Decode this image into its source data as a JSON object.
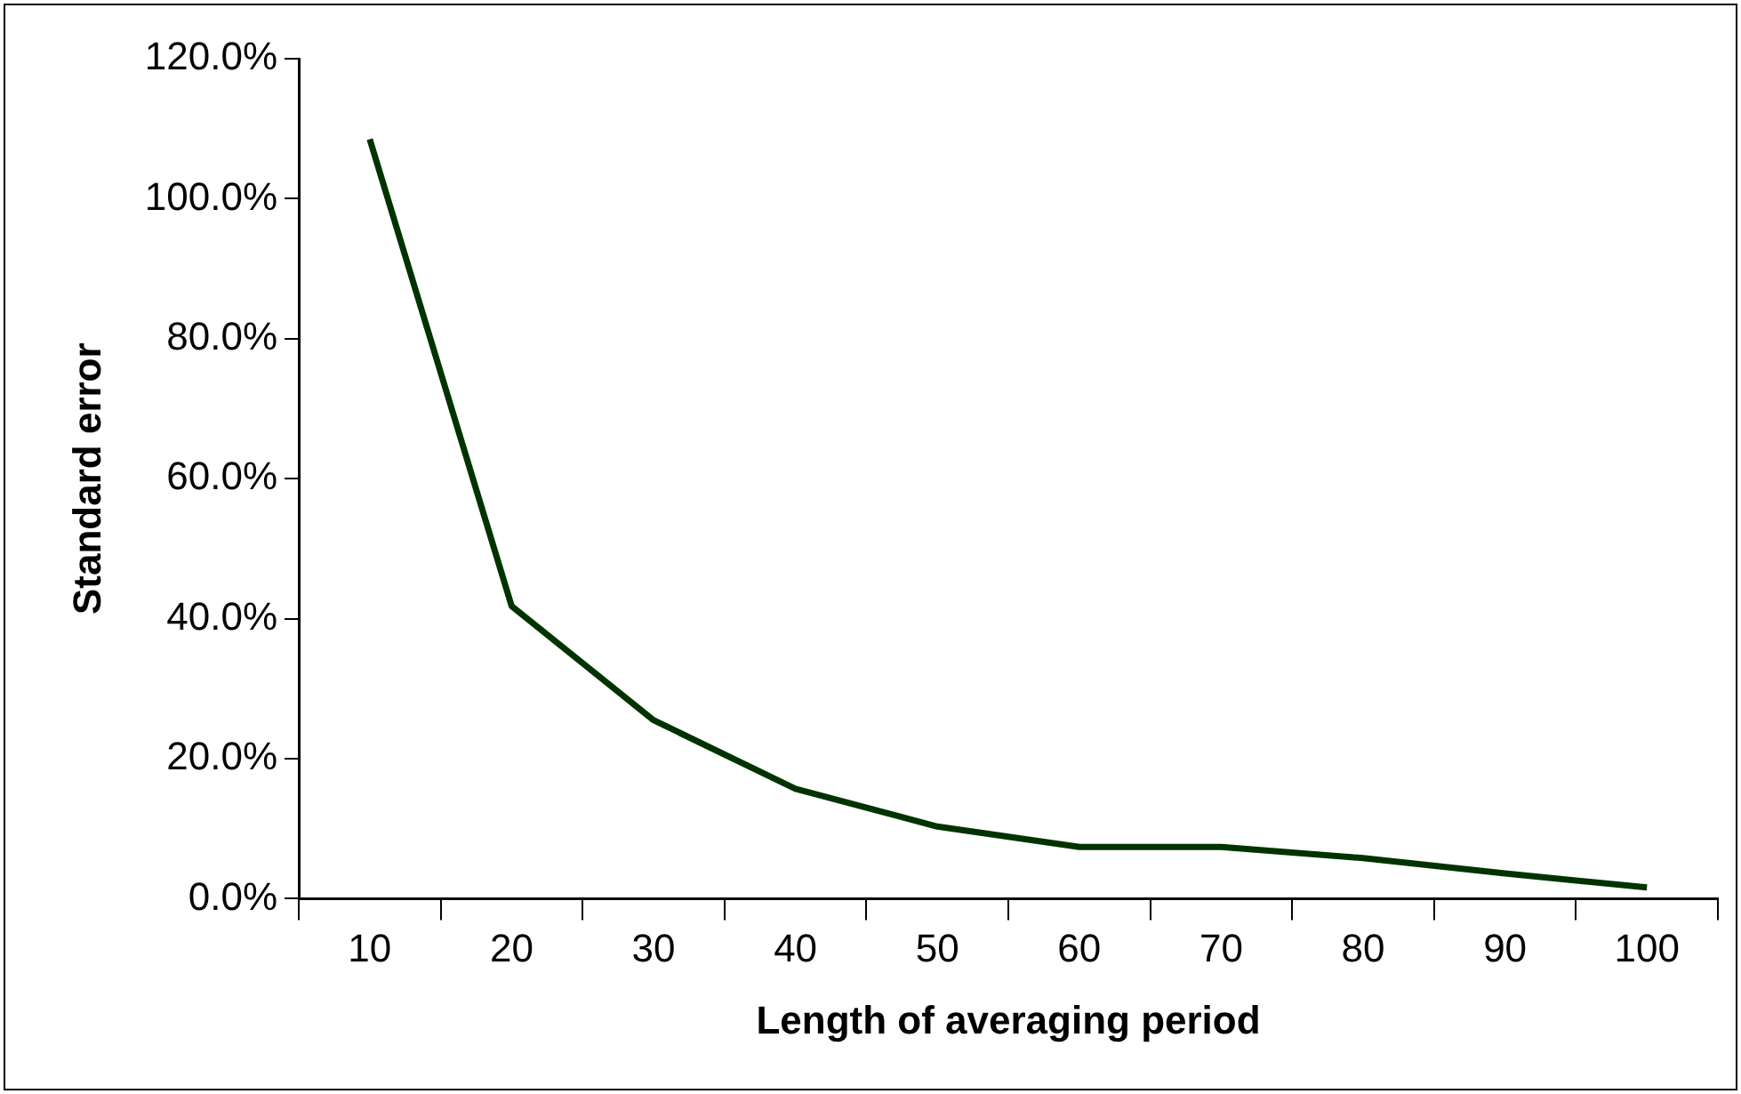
{
  "chart_data": {
    "type": "line",
    "xlabel": "Length of averaging period",
    "ylabel": "Standard error",
    "categories": [
      "10",
      "20",
      "30",
      "40",
      "50",
      "60",
      "70",
      "80",
      "90",
      "100"
    ],
    "series": [
      {
        "color": "#003300",
        "values": [
          108.5,
          41.8,
          25.5,
          15.7,
          10.3,
          7.4,
          7.4,
          5.8,
          3.6,
          1.6
        ]
      }
    ],
    "ylim": [
      0,
      120
    ],
    "yticks": [
      {
        "value": 0,
        "label": "0.0%"
      },
      {
        "value": 20,
        "label": "20.0%"
      },
      {
        "value": 40,
        "label": "40.0%"
      },
      {
        "value": 60,
        "label": "60.0%"
      },
      {
        "value": 80,
        "label": "80.0%"
      },
      {
        "value": 100,
        "label": "100.0%"
      },
      {
        "value": 120,
        "label": "120.0%"
      }
    ],
    "grid": false,
    "legend": false,
    "marker": "none",
    "line_style": "solid"
  }
}
